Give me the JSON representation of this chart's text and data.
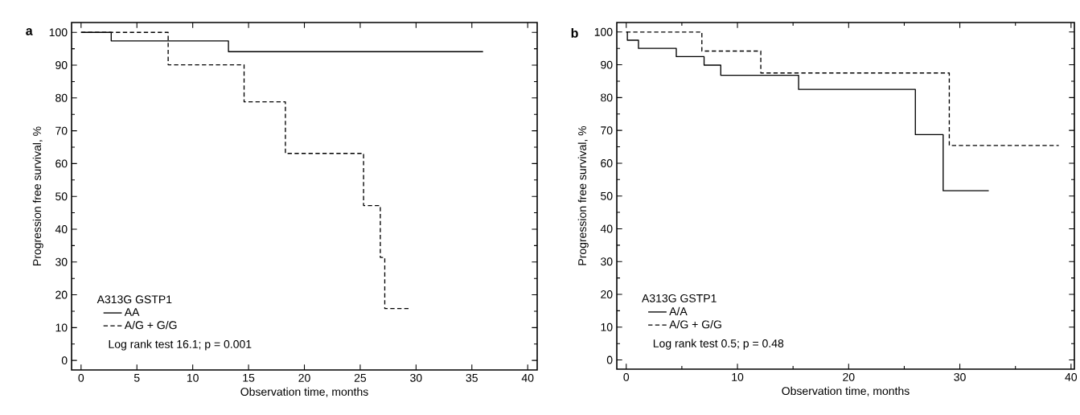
{
  "chart_data": [
    {
      "type": "step",
      "title": "a",
      "xlabel": "Observation time, months",
      "ylabel": "Progression free survival, %",
      "legend_title": "A313G GSTP1",
      "legend": "bottom left",
      "grid": false,
      "marker": "none",
      "annotations": [
        "Log rank test 16.1; p = 0.001"
      ],
      "xlim": [
        -0.85,
        40.85
      ],
      "ylim": [
        -2.9,
        103
      ],
      "xticks": [
        0,
        5,
        10,
        15,
        20,
        25,
        30,
        35,
        40
      ],
      "yticks": [
        0,
        {
          "value": 5,
          "label": null
        },
        10,
        {
          "value": 15,
          "label": null
        },
        20,
        {
          "value": 25,
          "label": null
        },
        30,
        {
          "value": 35,
          "label": null
        },
        40,
        {
          "value": 45,
          "label": null
        },
        50,
        {
          "value": 55,
          "label": null
        },
        60,
        {
          "value": 65,
          "label": null
        },
        70,
        {
          "value": 75,
          "label": null
        },
        80,
        {
          "value": 85,
          "label": null
        },
        90,
        {
          "value": 95,
          "label": null
        },
        100
      ],
      "series": [
        {
          "name": "AA",
          "color": "#000000",
          "line_style": "solid",
          "x": [
            0,
            2.7,
            13.2,
            36.0
          ],
          "values": [
            100,
            97.4,
            94.1,
            94.1
          ]
        },
        {
          "name": "A/G + G/G",
          "color": "#000000",
          "line_style": "dashed",
          "x": [
            0,
            7.8,
            14.6,
            18.3,
            25.3,
            26.8,
            27.2,
            29.4
          ],
          "values": [
            100,
            90.1,
            78.8,
            63.1,
            47.2,
            31.4,
            15.8,
            15.8
          ]
        }
      ]
    },
    {
      "type": "step",
      "title": "b",
      "xlabel": "Observation time, months",
      "ylabel": "Progression free survival, %",
      "legend_title": "A313G GSTP1",
      "legend": "bottom left",
      "grid": false,
      "marker": "none",
      "annotations": [
        "Log rank test 0.5; p = 0.48"
      ],
      "xlim": [
        -0.85,
        40.3
      ],
      "ylim": [
        -2.8,
        102.9
      ],
      "xticks": [
        0,
        {
          "value": 5,
          "label": null
        },
        10,
        {
          "value": 15,
          "label": null
        },
        20,
        {
          "value": 25,
          "label": null
        },
        30,
        {
          "value": 35,
          "label": null
        },
        40
      ],
      "yticks": [
        0,
        {
          "value": 5,
          "label": null
        },
        10,
        {
          "value": 15,
          "label": null
        },
        20,
        {
          "value": 25,
          "label": null
        },
        30,
        {
          "value": 35,
          "label": null
        },
        40,
        {
          "value": 45,
          "label": null
        },
        50,
        {
          "value": 55,
          "label": null
        },
        60,
        {
          "value": 65,
          "label": null
        },
        70,
        {
          "value": 75,
          "label": null
        },
        80,
        {
          "value": 85,
          "label": null
        },
        90,
        {
          "value": 95,
          "label": null
        },
        100
      ],
      "series": [
        {
          "name": "A/A",
          "color": "#000000",
          "line_style": "solid",
          "x": [
            0,
            0.1,
            1.1,
            4.5,
            7.0,
            8.5,
            15.5,
            26.0,
            28.5,
            32.6
          ],
          "values": [
            100,
            97.5,
            95.0,
            92.5,
            89.9,
            86.8,
            82.5,
            68.7,
            51.6,
            51.6
          ]
        },
        {
          "name": "A/G + G/G",
          "color": "#000000",
          "line_style": "dashed",
          "x": [
            0,
            6.8,
            12.1,
            29.05,
            38.9
          ],
          "values": [
            100,
            94.2,
            87.5,
            65.4,
            65.4
          ]
        }
      ]
    }
  ]
}
